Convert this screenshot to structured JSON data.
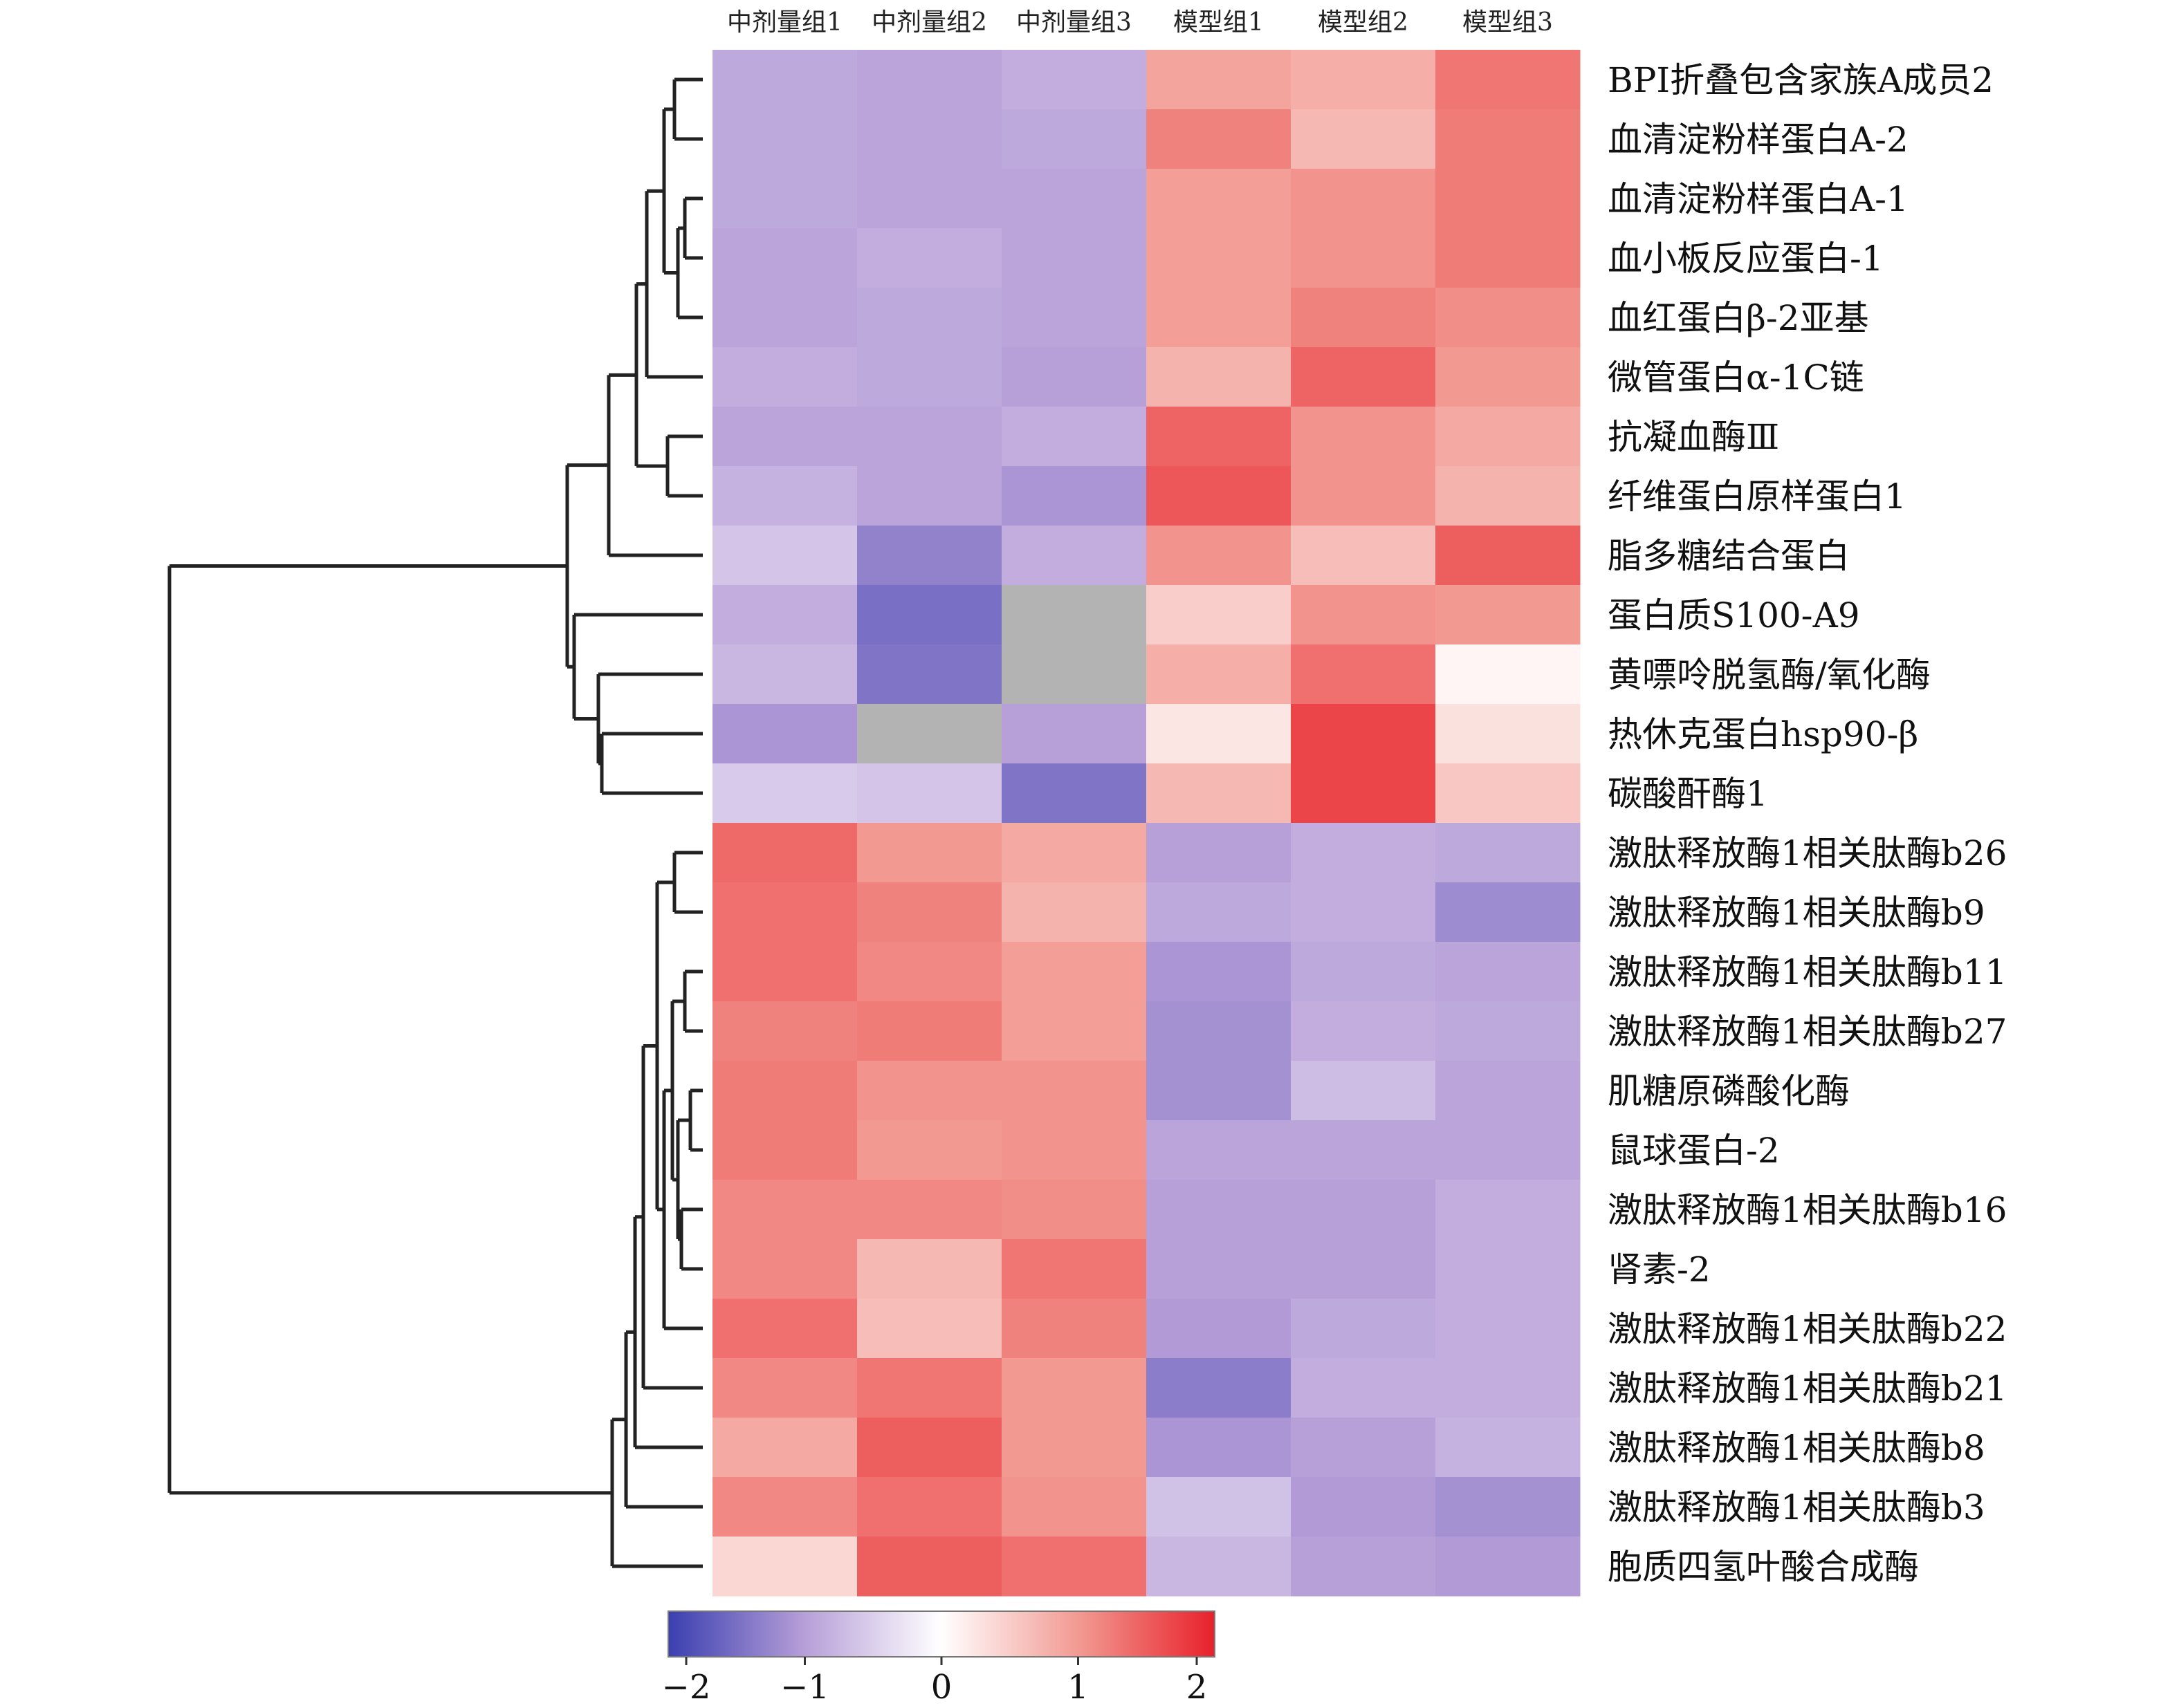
{
  "chart_data": {
    "type": "heatmap",
    "columns": [
      "中剂量组1",
      "中剂量组2",
      "中剂量组3",
      "模型组1",
      "模型组2",
      "模型组3"
    ],
    "rows": [
      "BPI折叠包含家族A成员2",
      "血清淀粉样蛋白A-2",
      "血清淀粉样蛋白A-1",
      "血小板反应蛋白-1",
      "血红蛋白β-2亚基",
      "微管蛋白α-1C链",
      "抗凝血酶Ⅲ",
      "纤维蛋白原样蛋白1",
      "脂多糖结合蛋白",
      "蛋白质S100-A9",
      "黄嘌呤脱氢酶/氧化酶",
      "热休克蛋白hsp90-β",
      "碳酸酐酶1",
      "激肽释放酶1相关肽酶b26",
      "激肽释放酶1相关肽酶b9",
      "激肽释放酶1相关肽酶b11",
      "激肽释放酶1相关肽酶b27",
      "肌糖原磷酸化酶",
      "鼠球蛋白-2",
      "激肽释放酶1相关肽酶b16",
      "肾素-2",
      "激肽释放酶1相关肽酶b22",
      "激肽释放酶1相关肽酶b21",
      "激肽释放酶1相关肽酶b8",
      "激肽释放酶1相关肽酶b3",
      "胞质四氢叶酸合成酶"
    ],
    "values": [
      [
        -0.9,
        -0.95,
        -0.85,
        0.9,
        0.8,
        1.3
      ],
      [
        -0.9,
        -0.95,
        -0.9,
        1.2,
        0.7,
        1.25
      ],
      [
        -0.9,
        -0.95,
        -0.95,
        0.95,
        1.05,
        1.25
      ],
      [
        -0.95,
        -0.85,
        -0.95,
        0.95,
        1.05,
        1.25
      ],
      [
        -0.95,
        -0.9,
        -0.95,
        0.95,
        1.2,
        1.1
      ],
      [
        -0.85,
        -0.9,
        -1.0,
        0.75,
        1.45,
        1.0
      ],
      [
        -0.95,
        -0.95,
        -0.85,
        1.45,
        1.05,
        0.85
      ],
      [
        -0.8,
        -0.95,
        -1.1,
        1.55,
        1.05,
        0.75
      ],
      [
        -0.6,
        -1.3,
        -0.85,
        1.05,
        0.65,
        1.5
      ],
      [
        -0.85,
        -1.5,
        null,
        0.5,
        1.05,
        1.0
      ],
      [
        -0.75,
        -1.45,
        null,
        0.8,
        1.35,
        0.1
      ],
      [
        -1.1,
        null,
        -1.0,
        0.25,
        1.7,
        0.3
      ],
      [
        -0.55,
        -0.6,
        -1.45,
        0.7,
        1.7,
        0.55
      ],
      [
        1.4,
        1.0,
        0.85,
        -1.0,
        -0.85,
        -0.9
      ],
      [
        1.35,
        1.2,
        0.75,
        -0.9,
        -0.85,
        -1.2
      ],
      [
        1.35,
        1.15,
        0.95,
        -1.1,
        -0.9,
        -0.95
      ],
      [
        1.2,
        1.25,
        0.95,
        -1.15,
        -0.85,
        -0.9
      ],
      [
        1.25,
        1.05,
        1.05,
        -1.15,
        -0.7,
        -0.95
      ],
      [
        1.25,
        1.0,
        1.05,
        -0.95,
        -0.95,
        -0.95
      ],
      [
        1.15,
        1.15,
        1.1,
        -1.0,
        -1.0,
        -0.85
      ],
      [
        1.15,
        0.7,
        1.3,
        -1.0,
        -1.0,
        -0.85
      ],
      [
        1.35,
        0.65,
        1.2,
        -1.05,
        -0.9,
        -0.85
      ],
      [
        1.15,
        1.3,
        1.0,
        -1.35,
        -0.85,
        -0.85
      ],
      [
        0.85,
        1.5,
        1.0,
        -1.1,
        -1.0,
        -0.8
      ],
      [
        1.15,
        1.35,
        1.05,
        -0.65,
        -1.05,
        -1.15
      ],
      [
        0.4,
        1.5,
        1.35,
        -0.75,
        -1.0,
        -1.05
      ]
    ],
    "colorbar": {
      "ticks": [
        "−2",
        "−1",
        "0",
        "1",
        "2"
      ],
      "range": [
        -2,
        2
      ],
      "colors": {
        "low": "#3a3fb0",
        "mid_low": "#b79fd8",
        "mid": "#ffffff",
        "mid_high": "#f29a92",
        "high": "#e8212b",
        "missing": "#b3b3b3"
      }
    },
    "dendrogram": "row clustering tree drawn on the left"
  }
}
